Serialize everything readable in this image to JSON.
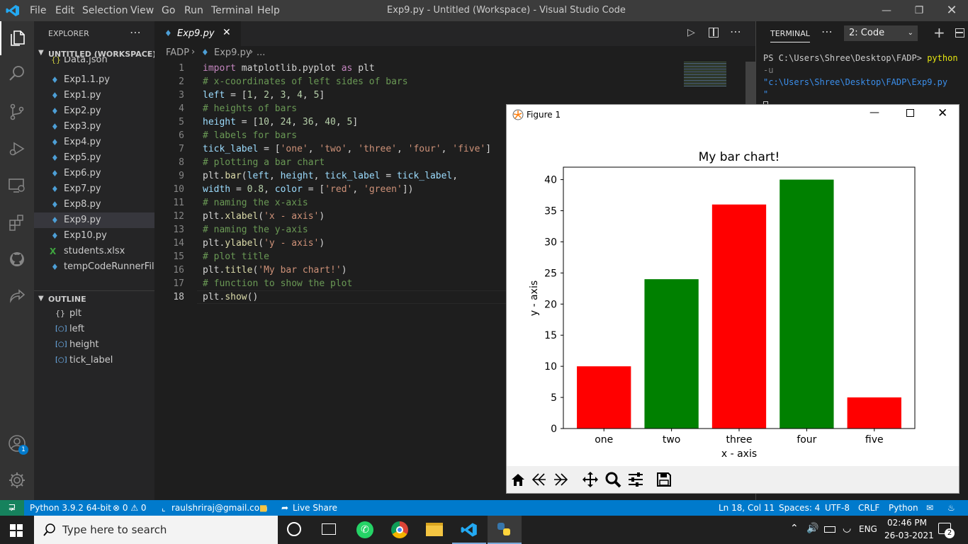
{
  "titlebar": {
    "menu": [
      "File",
      "Edit",
      "Selection",
      "View",
      "Go",
      "Run",
      "Terminal",
      "Help"
    ],
    "title": "Exp9.py - Untitled (Workspace) - Visual Studio Code"
  },
  "sidebar": {
    "explorer_title": "EXPLORER",
    "workspace": "UNTITLED (WORKSPACE)",
    "files": [
      "Data.json",
      "Exp1.1.py",
      "Exp1.py",
      "Exp2.py",
      "Exp3.py",
      "Exp4.py",
      "Exp5.py",
      "Exp6.py",
      "Exp7.py",
      "Exp8.py",
      "Exp9.py",
      "Exp10.py",
      "students.xlsx",
      "tempCodeRunnerFil..."
    ],
    "outline_title": "OUTLINE",
    "outline_items": [
      "plt",
      "left",
      "height",
      "tick_label"
    ],
    "accounts_badge": "1"
  },
  "editor": {
    "tab_label": "Exp9.py",
    "breadcrumb": [
      "FADP",
      "Exp9.py",
      "..."
    ],
    "line_numbers": [
      "1",
      "2",
      "3",
      "4",
      "5",
      "6",
      "7",
      "8",
      "9",
      "10",
      "11",
      "12",
      "13",
      "14",
      "15",
      "16",
      "17",
      "18"
    ],
    "lines": [
      "import matplotlib.pyplot as plt",
      "# x-coordinates of left sides of bars",
      "left = [1, 2, 3, 4, 5]",
      "# heights of bars",
      "height = [10, 24, 36, 40, 5]",
      "# labels for bars",
      "tick_label = ['one', 'two', 'three', 'four', 'five']",
      "# plotting a bar chart",
      "plt.bar(left, height, tick_label = tick_label,",
      "width = 0.8, color = ['red', 'green'])",
      "# naming the x-axis",
      "plt.xlabel('x - axis')",
      "# naming the y-axis",
      "plt.ylabel('y - axis')",
      "# plot title",
      "plt.title('My bar chart!')",
      "# function to show the plot",
      "plt.show()"
    ]
  },
  "terminal": {
    "tab": "TERMINAL",
    "selector": "2: Code",
    "prompt": "PS C:\\Users\\Shree\\Desktop\\FADP>",
    "cmd": "python",
    "arg_flag": "-u",
    "arg_path": "\"c:\\Users\\Shree\\Desktop\\FADP\\Exp9.py",
    "arg_end": "\""
  },
  "figure": {
    "window_title": "Figure 1"
  },
  "chart_data": {
    "type": "bar",
    "title": "My bar chart!",
    "xlabel": "x - axis",
    "ylabel": "y - axis",
    "categories": [
      "one",
      "two",
      "three",
      "four",
      "five"
    ],
    "values": [
      10,
      24,
      36,
      40,
      5
    ],
    "colors": [
      "#ff0000",
      "#008000",
      "#ff0000",
      "#008000",
      "#ff0000"
    ],
    "ylim": [
      0,
      42
    ],
    "yticks": [
      0,
      5,
      10,
      15,
      20,
      25,
      30,
      35,
      40
    ]
  },
  "statusbar": {
    "python": "Python 3.9.2 64-bit",
    "problems": "⊗ 0 ⚠ 0",
    "account": "raulshriraj@gmail.com",
    "liveshare": "Live Share",
    "position": "Ln 18, Col 11",
    "spaces": "Spaces: 4",
    "encoding": "UTF-8",
    "eol": "CRLF",
    "language": "Python"
  },
  "taskbar": {
    "search_placeholder": "Type here to search",
    "lang": "ENG",
    "time": "02:46 PM",
    "date": "26-03-2021",
    "notif_count": "2"
  },
  "colors": {
    "accent": "#007acc",
    "bar_red": "#ff0000",
    "bar_green": "#008000"
  }
}
